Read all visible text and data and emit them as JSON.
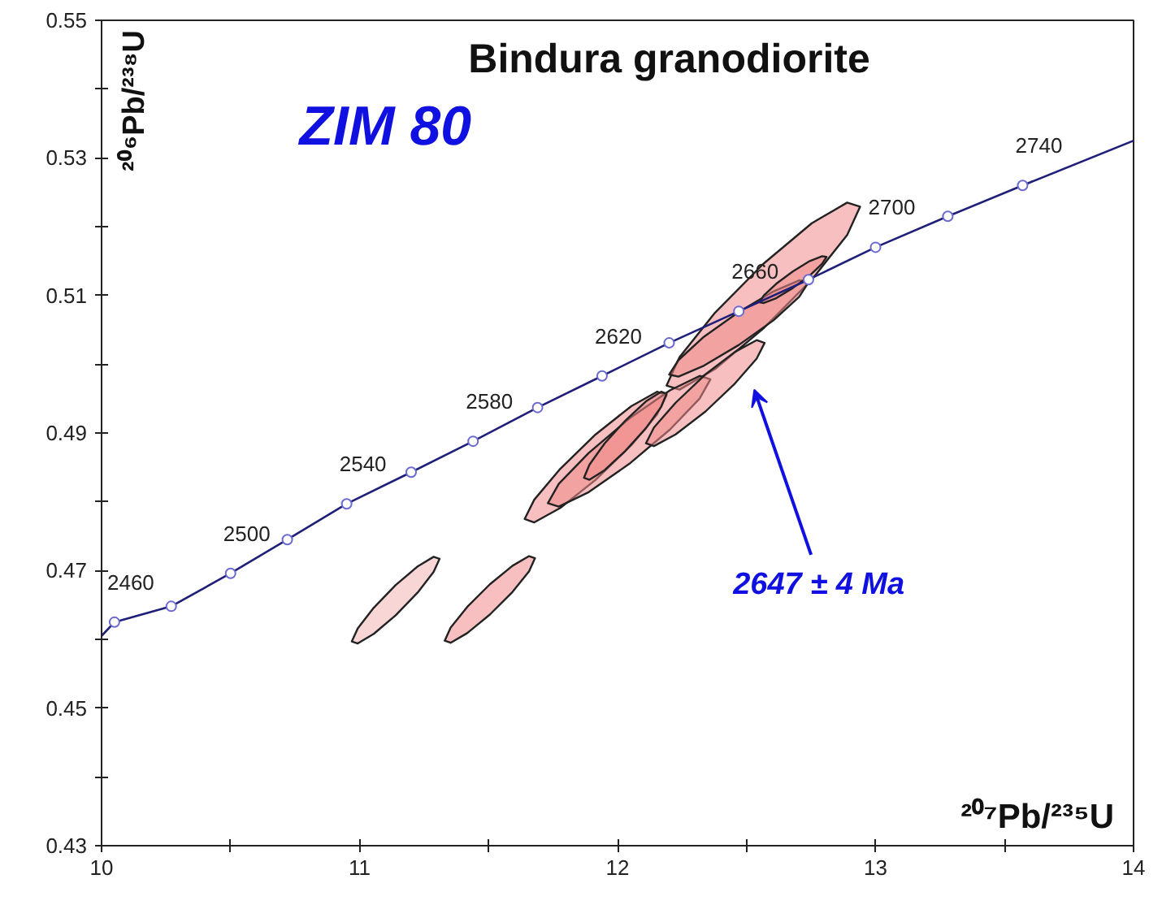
{
  "chart_data": {
    "type": "line",
    "title": "Bindura granodiorite",
    "xlabel": "²⁰⁷Pb/²³⁵U",
    "ylabel": "²⁰⁶Pb/²³⁸U",
    "xlim": [
      10,
      14
    ],
    "ylim": [
      0.43,
      0.55
    ],
    "xticks": [
      10,
      {
        "value": 10.5,
        "label": null
      },
      11,
      {
        "value": 11.5,
        "label": null
      },
      12,
      {
        "value": 12.5,
        "label": null
      },
      13,
      {
        "value": 13.5,
        "label": null
      },
      14
    ],
    "yticks": [
      {
        "value": 0.43,
        "label": "0.43"
      },
      {
        "value": 0.44,
        "label": null
      },
      {
        "value": 0.45,
        "label": "0.45"
      },
      {
        "value": 0.46,
        "label": null
      },
      {
        "value": 0.47,
        "label": "0.47"
      },
      {
        "value": 0.48,
        "label": null
      },
      {
        "value": 0.49,
        "label": "0.49"
      },
      {
        "value": 0.5,
        "label": null
      },
      {
        "value": 0.51,
        "label": "0.51"
      },
      {
        "value": 0.52,
        "label": null
      },
      {
        "value": 0.53,
        "label": "0.53"
      },
      {
        "value": 0.54,
        "label": null
      },
      {
        "value": 0.55,
        "label": "0.55"
      }
    ],
    "grid": false,
    "series": [
      {
        "type": "area",
        "color": "#f4b4b4",
        "x": [
          11.31,
          11.287,
          11.225,
          11.14,
          11.055,
          10.993,
          10.97,
          10.993,
          11.055,
          11.14,
          11.225,
          11.287
        ],
        "values": [
          0.4717,
          0.472,
          0.4706,
          0.4679,
          0.4646,
          0.4616,
          0.4597,
          0.4594,
          0.4608,
          0.4635,
          0.4668,
          0.4698
        ]
      },
      {
        "type": "area",
        "color": "#f08a8a",
        "x": [
          11.68,
          11.657,
          11.593,
          11.505,
          11.417,
          11.353,
          11.33,
          11.353,
          11.417,
          11.505,
          11.593,
          11.657
        ],
        "values": [
          0.4718,
          0.4721,
          0.4707,
          0.468,
          0.4647,
          0.4617,
          0.4598,
          0.4595,
          0.4609,
          0.4636,
          0.4669,
          0.4699
        ]
      },
      {
        "type": "area",
        "color": "#f08a8a",
        "x": [
          12.94,
          12.89,
          12.753,
          12.565,
          12.378,
          12.24,
          12.19,
          12.24,
          12.378,
          12.565,
          12.753,
          12.89
        ],
        "values": [
          0.5229,
          0.5235,
          0.5205,
          0.5146,
          0.5075,
          0.501,
          0.4969,
          0.4963,
          0.4993,
          0.5052,
          0.5123,
          0.5188
        ]
      },
      {
        "type": "area",
        "color": "#f08a8a",
        "x": [
          12.19,
          12.153,
          12.053,
          11.915,
          11.778,
          11.677,
          11.64,
          11.677,
          11.778,
          11.915,
          12.053,
          12.153
        ],
        "values": [
          0.4955,
          0.496,
          0.4939,
          0.4898,
          0.4848,
          0.4803,
          0.4775,
          0.477,
          0.4791,
          0.4832,
          0.4882,
          0.4927
        ]
      },
      {
        "type": "area",
        "color": "#f08a8a",
        "x": [
          12.36,
          12.318,
          12.203,
          12.045,
          11.888,
          11.772,
          11.73,
          11.772,
          11.888,
          12.045,
          12.203,
          12.318
        ],
        "values": [
          0.4978,
          0.4983,
          0.4962,
          0.4921,
          0.4871,
          0.4826,
          0.4798,
          0.4793,
          0.4814,
          0.4855,
          0.4905,
          0.495
        ]
      },
      {
        "type": "area",
        "color": "#f08a8a",
        "x": [
          12.19,
          12.169,
          12.11,
          12.03,
          11.95,
          11.891,
          11.87,
          11.891,
          11.95,
          12.03,
          12.11,
          12.169
        ],
        "values": [
          0.4957,
          0.496,
          0.4946,
          0.4918,
          0.4885,
          0.4854,
          0.4835,
          0.4832,
          0.4846,
          0.4874,
          0.4907,
          0.4938
        ]
      },
      {
        "type": "area",
        "color": "#f08a8a",
        "x": [
          12.74,
          12.704,
          12.605,
          12.47,
          12.335,
          12.236,
          12.2,
          12.236,
          12.335,
          12.47,
          12.605,
          12.704
        ],
        "values": [
          0.5119,
          0.5122,
          0.5106,
          0.5076,
          0.504,
          0.5006,
          0.4985,
          0.4982,
          0.4998,
          0.5028,
          0.5064,
          0.5098
        ]
      },
      {
        "type": "area",
        "color": "#f08a8a",
        "x": [
          12.57,
          12.539,
          12.455,
          12.34,
          12.225,
          12.141,
          12.11,
          12.141,
          12.225,
          12.34,
          12.455,
          12.539
        ],
        "values": [
          0.5031,
          0.5035,
          0.5018,
          0.4985,
          0.4944,
          0.4908,
          0.4885,
          0.4881,
          0.4898,
          0.4931,
          0.4972,
          0.5008
        ]
      },
      {
        "type": "area",
        "color": "#f08a8a",
        "x": [
          12.81,
          12.793,
          12.745,
          12.68,
          12.615,
          12.567,
          12.55,
          12.567,
          12.615,
          12.68,
          12.745,
          12.793
        ],
        "values": [
          0.5156,
          0.5157,
          0.515,
          0.5135,
          0.5117,
          0.51,
          0.509,
          0.5089,
          0.5096,
          0.5111,
          0.5129,
          0.5146
        ]
      },
      {
        "color": "#1f1f7a",
        "marker": "none",
        "x": [
          10.0,
          10.05,
          10.27,
          10.5,
          10.72,
          10.95,
          11.2,
          11.44,
          11.69,
          11.94,
          12.2,
          12.47,
          12.74,
          13.0,
          13.28,
          13.57,
          14.0
        ],
        "values": [
          0.4605,
          0.4625,
          0.4648,
          0.4696,
          0.4745,
          0.4797,
          0.4843,
          0.4888,
          0.4937,
          0.4983,
          0.5031,
          0.5077,
          0.5123,
          0.517,
          0.5215,
          0.526,
          0.5325
        ]
      },
      {
        "type": "scatter",
        "color": "#6a6ad0",
        "marker": "circle",
        "x": [
          10.05,
          10.27,
          10.5,
          10.72,
          10.95,
          11.2,
          11.44,
          11.69,
          11.94,
          12.2,
          12.47,
          12.74,
          13.0,
          13.28,
          13.57
        ],
        "values": [
          0.4625,
          0.4648,
          0.4696,
          0.4745,
          0.4797,
          0.4843,
          0.4888,
          0.4937,
          0.4983,
          0.5031,
          0.5077,
          0.5123,
          0.517,
          0.5215,
          0.526
        ]
      }
    ],
    "annotations": [
      {
        "text": "2460",
        "x": 10.05,
        "y": 0.4625
      },
      {
        "text": "2500",
        "x": 10.5,
        "y": 0.4696
      },
      {
        "text": "2540",
        "x": 10.95,
        "y": 0.4797
      },
      {
        "text": "2580",
        "x": 11.44,
        "y": 0.4888
      },
      {
        "text": "2620",
        "x": 11.94,
        "y": 0.4983
      },
      {
        "text": "2660",
        "x": 12.47,
        "y": 0.5077
      },
      {
        "text": "2700",
        "x": 13.0,
        "y": 0.517
      },
      {
        "text": "2740",
        "x": 13.57,
        "y": 0.526
      },
      "ZIM 80",
      "2647 ± 4 Ma"
    ]
  }
}
